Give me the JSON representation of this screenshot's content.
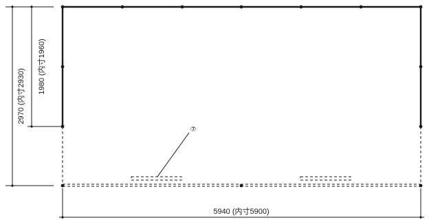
{
  "dimensions": {
    "width_label": "5940 (内寸5900)",
    "total_height_label": "2970 (内寸2930)",
    "upper_height_label": "1980 (内寸1960)"
  },
  "callout": {
    "number": "⑦"
  },
  "colors": {
    "line": "#1a1a1a",
    "background": "#ffffff"
  }
}
